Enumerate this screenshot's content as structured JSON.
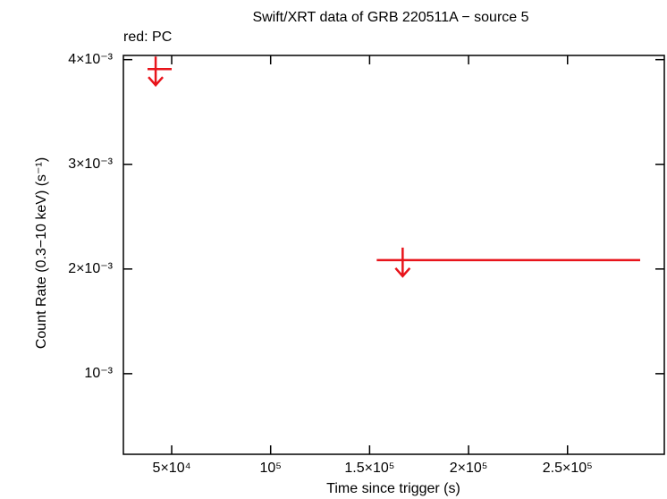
{
  "chart_data": {
    "type": "upper-limit",
    "title": "Swift/XRT data of GRB 220511A − source 5",
    "xlabel": "Time since trigger (s)",
    "ylabel": "Count Rate (0.3−10 keV) (s⁻¹)",
    "series": [
      {
        "name": "red: PC",
        "color": "#e8141b",
        "x": [
          41900,
          166700
        ],
        "x_low": [
          37800,
          153600
        ],
        "x_high": [
          50000,
          286700
        ],
        "values": [
          0.00391,
          0.002085
        ]
      }
    ],
    "xlim": [
      25600,
      298900
    ],
    "xticks": [
      {
        "value": 50000,
        "label": "5×10⁴"
      },
      {
        "value": 100000,
        "label": "10⁵"
      },
      {
        "value": 150000,
        "label": "1.5×10⁵"
      },
      {
        "value": 200000,
        "label": "2×10⁵"
      },
      {
        "value": 250000,
        "label": "2.5×10⁵"
      }
    ],
    "ylim": [
      0.00023,
      0.00404
    ],
    "yticks": [
      {
        "value": 0.001,
        "label": "10⁻³"
      },
      {
        "value": 0.002,
        "label": "2×10⁻³"
      },
      {
        "value": 0.003,
        "label": "3×10⁻³"
      },
      {
        "value": 0.004,
        "label": "4×10⁻³"
      }
    ]
  }
}
